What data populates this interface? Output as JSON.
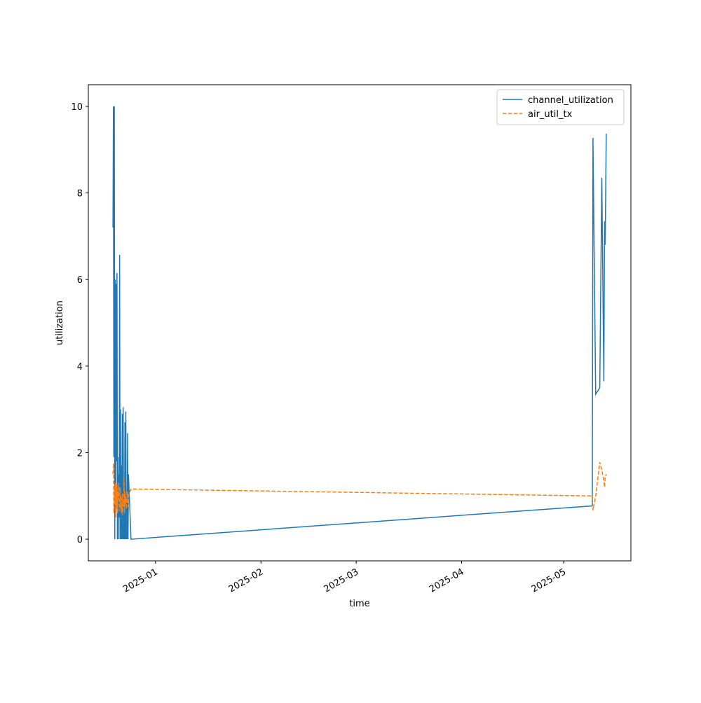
{
  "chart_data": {
    "type": "line",
    "xlabel": "time",
    "ylabel": "utilization",
    "x": [
      -12.5,
      -12.37,
      -12.24,
      -12.11,
      -11.98,
      -11.85,
      -11.72,
      -11.59,
      -11.46,
      -11.33,
      -11.2,
      -11.07,
      -10.94,
      -10.81,
      -10.68,
      -10.55,
      -10.42,
      -10.29,
      -10.16,
      -10.03,
      -9.9,
      -9.77,
      -9.64,
      -9.51,
      -9.38,
      -9.25,
      -9.12,
      -8.99,
      -8.86,
      -8.73,
      -8.6,
      -8.47,
      -8.34,
      -8.21,
      -8.08,
      -7.95,
      -7.2,
      128.4,
      128.6,
      129.4,
      130.6,
      131.2,
      131.8,
      132.0,
      132.2,
      132.5
    ],
    "series": [
      {
        "name": "channel_utilization",
        "color": "#1f77b4",
        "dash": false,
        "values": [
          7.2,
          10,
          1.9,
          10,
          0,
          6.0,
          0.5,
          5.9,
          1.8,
          6.15,
          0,
          1.9,
          0,
          1.5,
          0.5,
          6.57,
          0,
          3.0,
          0,
          1.7,
          0,
          2.9,
          0,
          3.05,
          0,
          1.2,
          0,
          2.7,
          0,
          2.95,
          0,
          1.0,
          0,
          2.45,
          0,
          1.5,
          0,
          0.77,
          9.27,
          3.35,
          3.5,
          8.35,
          3.65,
          7.35,
          6.8,
          9.37
        ]
      },
      {
        "name": "air_util_tx",
        "color": "#ff7f0e",
        "dash": true,
        "values": [
          1.5,
          1.75,
          0.6,
          1.2,
          0.8,
          1.3,
          0.5,
          1.0,
          0.7,
          1.25,
          0.6,
          1.1,
          0.9,
          1.3,
          0.65,
          0.9,
          1.2,
          0.7,
          1.0,
          0.6,
          0.8,
          1.05,
          0.55,
          0.9,
          0.75,
          1.4,
          0.6,
          1.1,
          0.8,
          1.0,
          0.7,
          0.95,
          0.85,
          1.1,
          0.75,
          1.0,
          1.16,
          1.0,
          0.67,
          1.0,
          1.78,
          1.6,
          1.35,
          1.2,
          1.45,
          1.5
        ]
      }
    ],
    "xlim": [
      -19.75,
      139.75
    ],
    "xticks": [
      {
        "value": 0,
        "label": "2025-01"
      },
      {
        "value": 31,
        "label": "2025-02"
      },
      {
        "value": 59,
        "label": "2025-03"
      },
      {
        "value": 90,
        "label": "2025-04"
      },
      {
        "value": 120,
        "label": "2025-05"
      }
    ],
    "ylim": [
      -0.5,
      10.5
    ],
    "yticks": [
      0,
      2,
      4,
      6,
      8,
      10
    ],
    "legend": "upper right"
  }
}
